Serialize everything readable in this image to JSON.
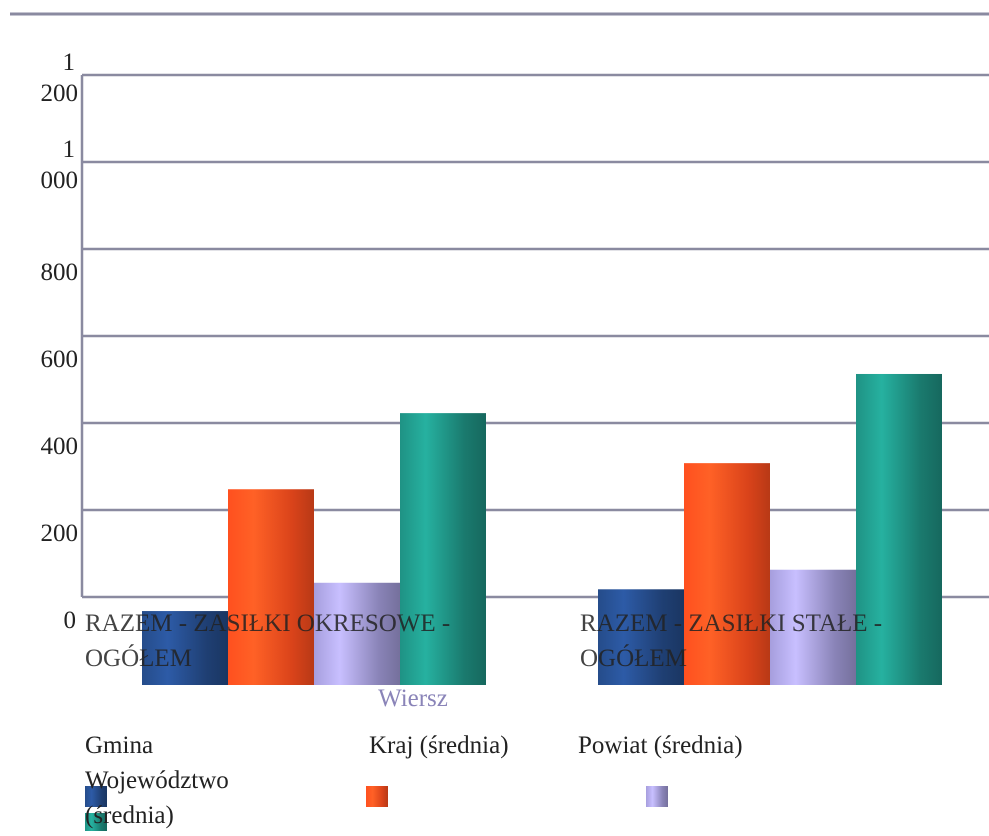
{
  "chart_data": {
    "type": "bar",
    "categories": [
      [
        "RAZEM - ZASIŁKI OKRESOWE -",
        "OGÓŁEM"
      ],
      [
        "RAZEM - ZASIŁKI STAŁE -",
        "OGÓŁEM"
      ]
    ],
    "series": [
      {
        "name": "Gmina",
        "color": "#1f3f73",
        "values": [
          170,
          220
        ]
      },
      {
        "name": "Kraj (średnia)",
        "color": "#d9431a",
        "values": [
          450,
          510
        ]
      },
      {
        "name": "Powiat (średnia)",
        "color": "#8a84b8",
        "values": [
          235,
          265
        ]
      },
      {
        "name": "Województwo (średnia)",
        "color": "#1a7a6e",
        "values": [
          625,
          715
        ]
      }
    ],
    "y_ticks": [
      {
        "value": 0,
        "lines": [
          "0"
        ]
      },
      {
        "value": 200,
        "lines": [
          "200"
        ]
      },
      {
        "value": 400,
        "lines": [
          "400"
        ]
      },
      {
        "value": 600,
        "lines": [
          "600"
        ]
      },
      {
        "value": 800,
        "lines": [
          "800"
        ]
      },
      {
        "value": 1000,
        "lines": [
          "1",
          "000"
        ]
      },
      {
        "value": 1200,
        "lines": [
          "1",
          "200"
        ]
      }
    ],
    "xlabel": "Wiersz",
    "ylabel": "",
    "ylim": [
      0,
      1200
    ],
    "grid": true,
    "legend_position": "bottom"
  }
}
